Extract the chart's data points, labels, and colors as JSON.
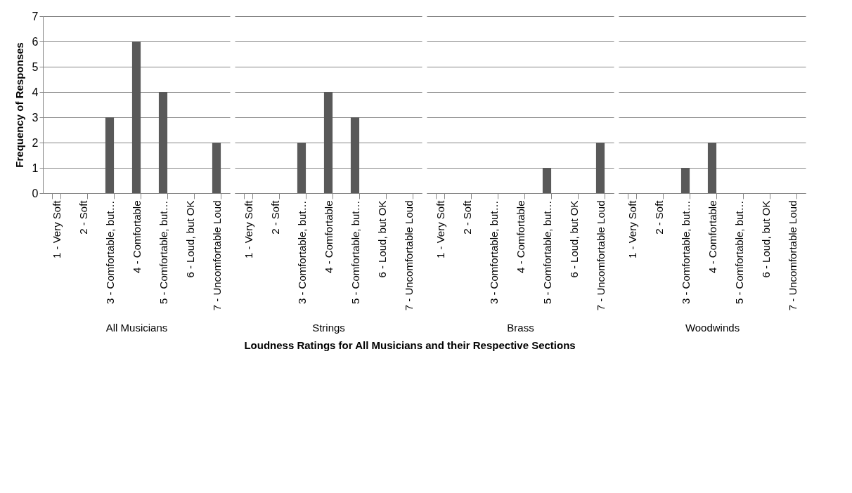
{
  "chart_data": [
    {
      "type": "bar",
      "xlabel": "All Musicians",
      "ylabel": "Frequency of Responses",
      "categories": [
        "1 - Very Soft",
        "2 - Soft",
        "3 - Comfortable, but…",
        "4 - Comfortable",
        "5 - Comfortable, but…",
        "6 - Loud, but OK",
        "7 - Uncomfortable Loud"
      ],
      "values": [
        0,
        0,
        3,
        6,
        4,
        0,
        2
      ],
      "color": "#595959",
      "ylim": [
        0,
        7
      ],
      "yticks": [
        0,
        1,
        2,
        3,
        4,
        5,
        6,
        7
      ],
      "grid": "y",
      "annotations": [
        "Loudness Ratings for All Musicians and their Respective Sections"
      ]
    },
    {
      "type": "bar",
      "xlabel": "Strings",
      "categories": [
        "1 - Very Soft",
        "2 - Soft",
        "3 - Comfortable, but…",
        "4 - Comfortable",
        "5 - Comfortable, but…",
        "6 - Loud, but OK",
        "7 - Uncomfortable Loud"
      ],
      "values": [
        0,
        0,
        2,
        4,
        3,
        0,
        0
      ],
      "color": "#595959",
      "ylim": [
        0,
        7
      ],
      "yticks": [
        0,
        1,
        2,
        3,
        4,
        5,
        6,
        7
      ],
      "grid": "y",
      "tick_labels": "x"
    },
    {
      "type": "bar",
      "xlabel": "Brass",
      "categories": [
        "1 - Very Soft",
        "2 - Soft",
        "3 - Comfortable, but…",
        "4 - Comfortable",
        "5 - Comfortable, but…",
        "6 - Loud, but OK",
        "7 - Uncomfortable Loud"
      ],
      "values": [
        0,
        0,
        0,
        0,
        1,
        0,
        2
      ],
      "color": "#595959",
      "ylim": [
        0,
        7
      ],
      "yticks": [
        0,
        1,
        2,
        3,
        4,
        5,
        6,
        7
      ],
      "grid": "y",
      "tick_labels": "x"
    },
    {
      "type": "bar",
      "xlabel": "Woodwinds",
      "categories": [
        "1 - Very Soft",
        "2 - Soft",
        "3 - Comfortable, but…",
        "4 - Comfortable",
        "5 - Comfortable, but…",
        "6 - Loud, but OK",
        "7 - Uncomfortable Loud"
      ],
      "values": [
        0,
        0,
        1,
        2,
        0,
        0,
        0
      ],
      "color": "#595959",
      "ylim": [
        0,
        7
      ],
      "yticks": [
        0,
        1,
        2,
        3,
        4,
        5,
        6,
        7
      ],
      "grid": "y",
      "tick_labels": "x"
    }
  ]
}
